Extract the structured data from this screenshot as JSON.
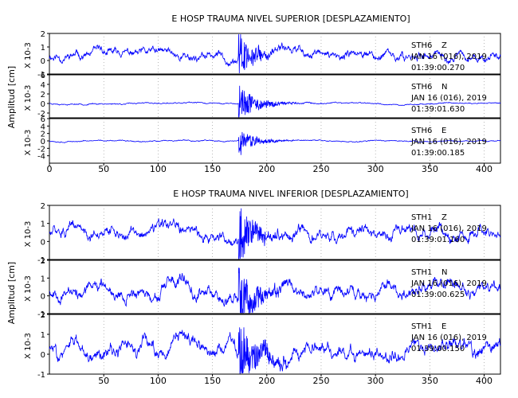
{
  "chart_data": [
    {
      "type": "line",
      "title": "E HOSP TRAUMA NIVEL SUPERIOR [DESPLAZAMIENTO]",
      "ylabel": "Amplitud [cm]",
      "xlim": [
        0,
        415
      ],
      "x_ticks": [
        "0",
        "50",
        "100",
        "150",
        "200",
        "250",
        "300",
        "350",
        "400"
      ],
      "grid": true,
      "panels": [
        {
          "station": "STH6",
          "component": "Z",
          "date_label": "JAN 16 (016), 2019",
          "time_label": "01:39:00.270",
          "unit_label": "X 10-3",
          "y_ticks": [
            "-1",
            "0",
            "1",
            "2"
          ],
          "ylim": [
            -1,
            2
          ],
          "y_values_at_ticks": [
            -1,
            0,
            1,
            2
          ],
          "series": {
            "base": 0.35,
            "noise": 0.42,
            "event_start": 174,
            "event_peak": 2.0,
            "event_decay": 14,
            "seed": 11
          }
        },
        {
          "station": "STH6",
          "component": "N",
          "date_label": "JAN 16 (016), 2019",
          "time_label": "01:39:01.630",
          "unit_label": "X 10-3",
          "y_ticks": [
            "-2",
            "0",
            "2",
            "4",
            "6"
          ],
          "ylim": [
            -3,
            6
          ],
          "y_values_at_ticks": [
            -2,
            0,
            2,
            4,
            6
          ],
          "series": {
            "base": 0.0,
            "noise": 0.18,
            "event_start": 174,
            "event_peak": 5.0,
            "event_decay": 16,
            "seed": 23
          }
        },
        {
          "station": "STH6",
          "component": "E",
          "date_label": "JAN 16 (016), 2019",
          "time_label": "01:39:00.185",
          "unit_label": "X 10-3",
          "y_ticks": [
            "-4",
            "-2",
            "0",
            "2",
            "4",
            "6"
          ],
          "ylim": [
            -6,
            6
          ],
          "y_values_at_ticks": [
            -4,
            -2,
            0,
            2,
            4,
            6
          ],
          "series": {
            "base": 0.0,
            "noise": 0.2,
            "event_start": 174,
            "event_peak": 4.5,
            "event_decay": 14,
            "seed": 37
          }
        }
      ]
    },
    {
      "type": "line",
      "title": "E HOSP TRAUMA NIVEL INFERIOR [DESPLAZAMIENTO]",
      "ylabel": "Amplitud [cm]",
      "xlim": [
        0,
        415
      ],
      "x_ticks": [
        "50",
        "100",
        "150",
        "200",
        "250",
        "300",
        "350",
        "400"
      ],
      "grid": true,
      "panels": [
        {
          "station": "STH1",
          "component": "Z",
          "date_label": "JAN 16 (016), 2019",
          "time_label": "01:39:01.160",
          "unit_label": "X 10-3",
          "y_ticks": [
            "-1",
            "0",
            "1",
            "2"
          ],
          "ylim": [
            -1,
            2
          ],
          "y_values_at_ticks": [
            -1,
            0,
            1,
            2
          ],
          "series": {
            "base": 0.45,
            "noise": 0.45,
            "event_start": 174,
            "event_peak": 2.0,
            "event_decay": 16,
            "seed": 51
          }
        },
        {
          "station": "STH1",
          "component": "N",
          "date_label": "JAN 16 (016), 2019",
          "time_label": "01:39:00.625",
          "unit_label": "X 10-3",
          "y_ticks": [
            "-1",
            "0",
            "1",
            "2"
          ],
          "ylim": [
            -1,
            2
          ],
          "y_values_at_ticks": [
            -1,
            0,
            1,
            2
          ],
          "series": {
            "base": 0.35,
            "noise": 0.5,
            "event_start": 174,
            "event_peak": 1.9,
            "event_decay": 18,
            "seed": 67
          }
        },
        {
          "station": "STH1",
          "component": "E",
          "date_label": "JAN 16 (016), 2019",
          "time_label": "01:39:00.150",
          "unit_label": "X 10-3",
          "y_ticks": [
            "-1",
            "0",
            "1",
            "2"
          ],
          "ylim": [
            -1,
            2
          ],
          "y_values_at_ticks": [
            -1,
            0,
            1,
            2
          ],
          "series": {
            "base": 0.25,
            "noise": 0.5,
            "event_start": 174,
            "event_peak": 1.9,
            "event_decay": 18,
            "seed": 83
          }
        }
      ]
    }
  ],
  "colors": {
    "trace": "#0000ff",
    "axes": "#000000",
    "grid": "#888888",
    "text": "#000000"
  }
}
